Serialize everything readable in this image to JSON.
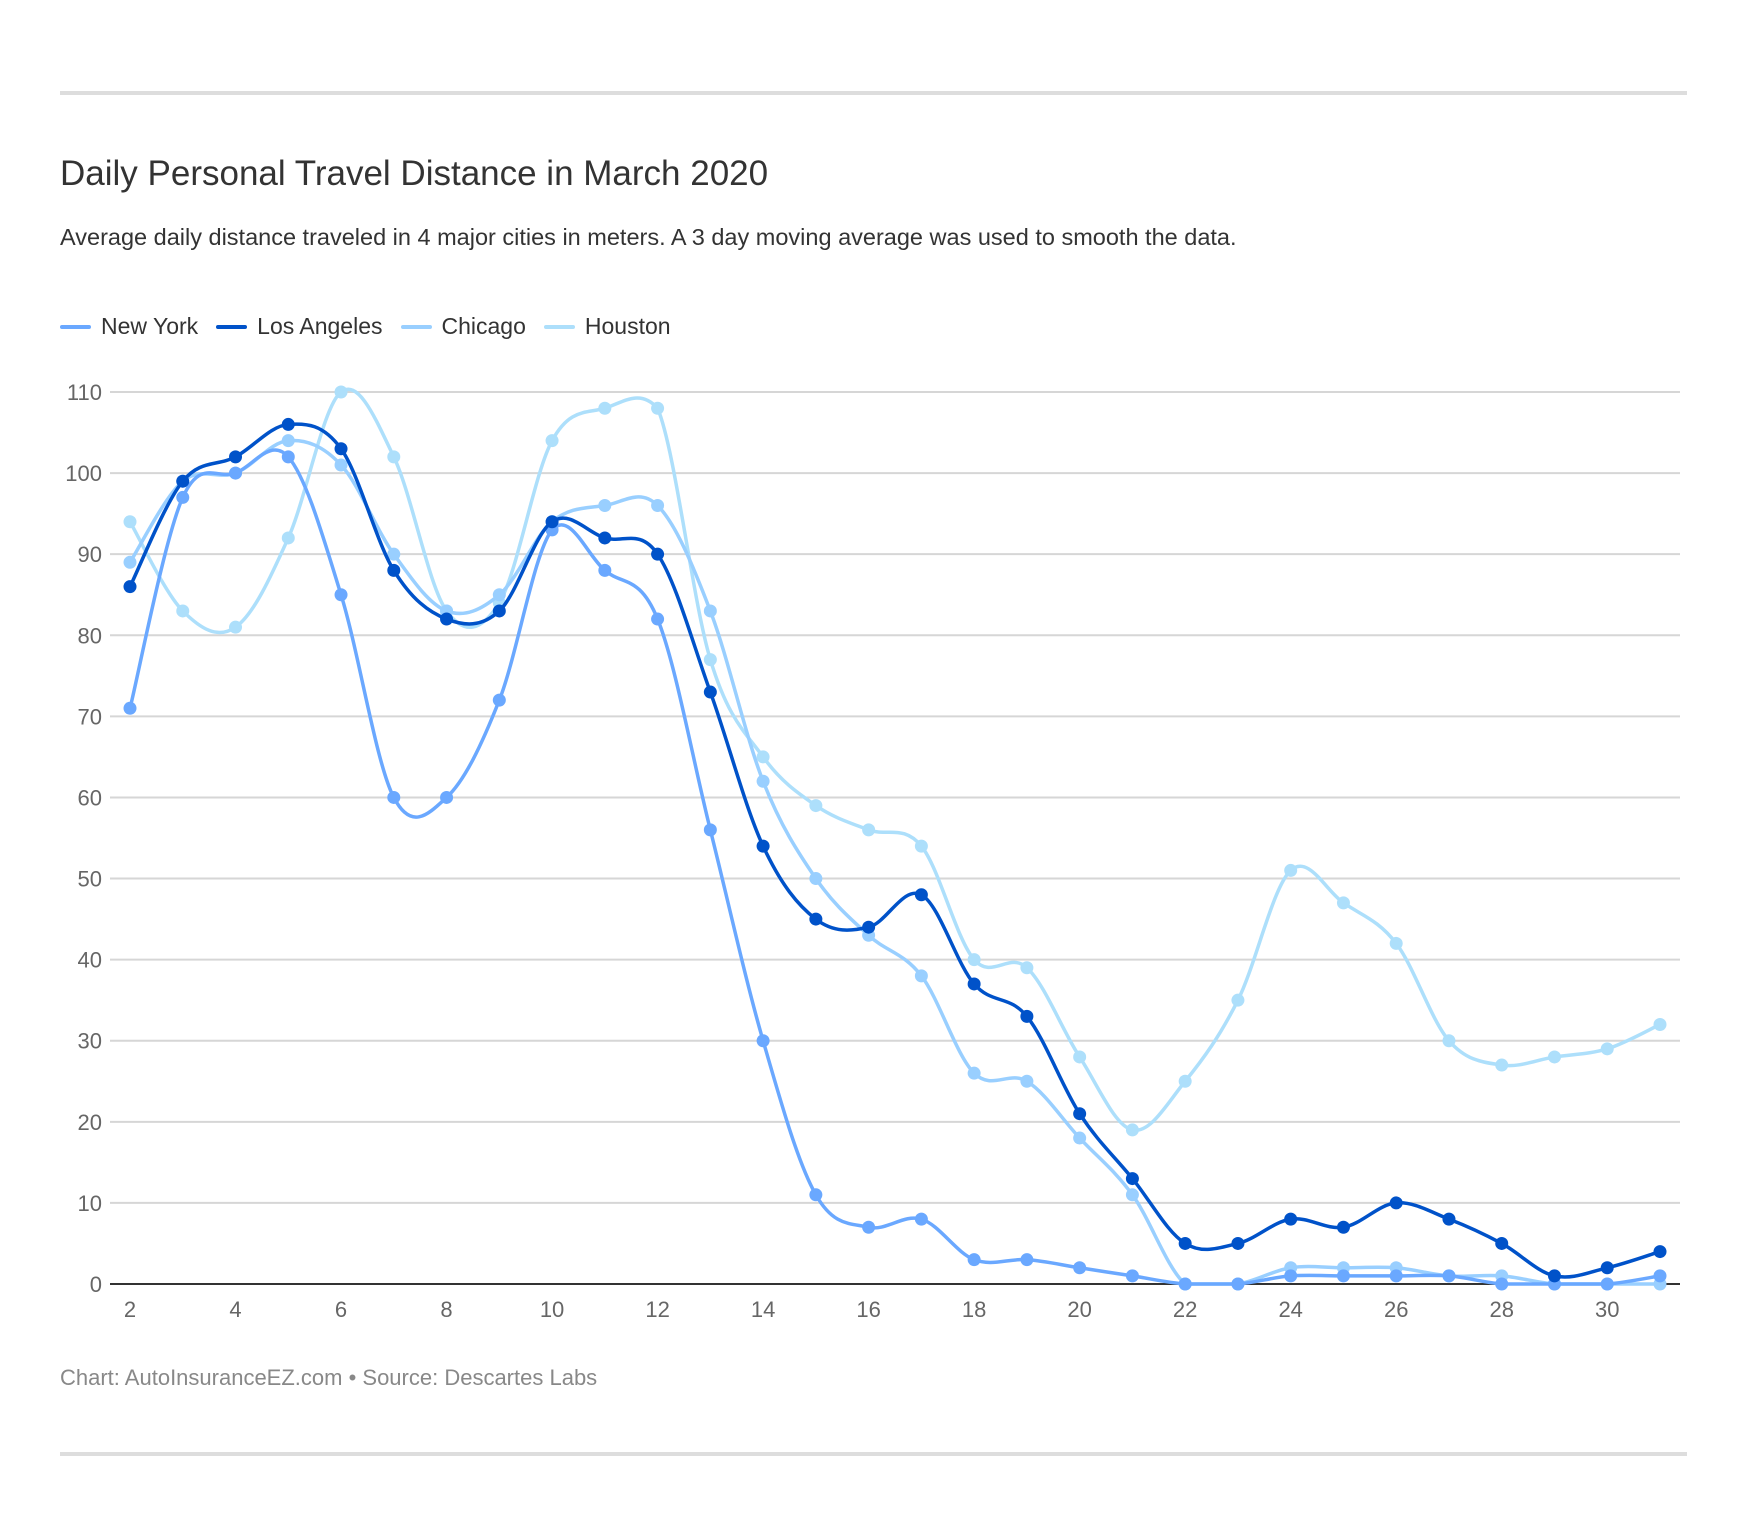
{
  "chart_data": {
    "type": "line",
    "title": "Daily Personal Travel Distance in March 2020",
    "subtitle": "Average daily distance traveled in 4 major cities in meters. A 3 day moving average was used to smooth the data.",
    "footer": "Chart: AutoInsuranceEZ.com • Source: Descartes Labs",
    "xlabel": "",
    "ylabel": "",
    "x": [
      2,
      3,
      4,
      5,
      6,
      7,
      8,
      9,
      10,
      11,
      12,
      13,
      14,
      15,
      16,
      17,
      18,
      19,
      20,
      21,
      22,
      23,
      24,
      25,
      26,
      27,
      28,
      29,
      30,
      31
    ],
    "x_ticks": [
      2,
      4,
      6,
      8,
      10,
      12,
      14,
      16,
      18,
      20,
      22,
      24,
      26,
      28,
      30
    ],
    "y_ticks": [
      0,
      10,
      20,
      30,
      40,
      50,
      60,
      70,
      80,
      90,
      100,
      110
    ],
    "xlim": [
      2,
      31
    ],
    "ylim": [
      0,
      110
    ],
    "grid": "horizontal",
    "legend_position": "top-left",
    "series": [
      {
        "name": "New York",
        "color": "#6aa8ff",
        "values": [
          71,
          97,
          100,
          102,
          85,
          60,
          60,
          72,
          93,
          88,
          82,
          56,
          30,
          11,
          7,
          8,
          3,
          3,
          2,
          1,
          0,
          0,
          1,
          1,
          1,
          1,
          0,
          0,
          0,
          1
        ]
      },
      {
        "name": "Los Angeles",
        "color": "#0052c9",
        "values": [
          86,
          99,
          102,
          106,
          103,
          88,
          82,
          83,
          94,
          92,
          90,
          73,
          54,
          45,
          44,
          48,
          37,
          33,
          21,
          13,
          5,
          5,
          8,
          7,
          10,
          8,
          5,
          1,
          2,
          4
        ]
      },
      {
        "name": "Chicago",
        "color": "#99cfff",
        "values": [
          89,
          99,
          100,
          104,
          101,
          90,
          83,
          85,
          94,
          96,
          96,
          83,
          62,
          50,
          43,
          38,
          26,
          25,
          18,
          11,
          0,
          0,
          2,
          2,
          2,
          1,
          1,
          0,
          0,
          0
        ]
      },
      {
        "name": "Houston",
        "color": "#addffb",
        "values": [
          94,
          83,
          81,
          92,
          110,
          102,
          83,
          84,
          104,
          108,
          108,
          77,
          65,
          59,
          56,
          54,
          40,
          39,
          28,
          19,
          25,
          35,
          51,
          47,
          42,
          30,
          27,
          28,
          29,
          32
        ]
      }
    ]
  }
}
